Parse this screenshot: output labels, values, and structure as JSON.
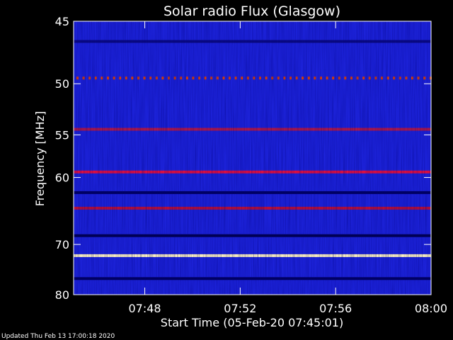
{
  "chart_data": {
    "type": "heatmap",
    "title": "Solar radio Flux (Glasgow)",
    "xlabel": "Start Time (05-Feb-20 07:45:01)",
    "ylabel": "Frequency [MHz]",
    "xlim": [
      "07:45:01",
      "08:00:00"
    ],
    "ylim": [
      45,
      80
    ],
    "x_ticks": [
      "07:48",
      "07:52",
      "07:56",
      "08:00"
    ],
    "y_ticks": [
      45,
      50,
      55,
      60,
      70,
      80
    ],
    "y_scale": "reciprocal",
    "colormap": [
      "#000030",
      "#0000a0",
      "#2020ff",
      "#b01040",
      "#ff2020",
      "#ffa000",
      "#ffffc0"
    ],
    "background_color": "#1c22d8",
    "bands": [
      {
        "freq": 46.5,
        "color": "#0a0a80"
      },
      {
        "freq": 49.5,
        "color": "#e04000",
        "pattern": "dotted"
      },
      {
        "freq": 54.4,
        "color": "#b01848"
      },
      {
        "freq": 59.3,
        "color": "#e01040"
      },
      {
        "freq": 62.0,
        "color": "#000060"
      },
      {
        "freq": 64.2,
        "color": "#b81038"
      },
      {
        "freq": 68.5,
        "color": "#000050"
      },
      {
        "freq": 72.0,
        "color": "#fff4c0"
      },
      {
        "freq": 76.5,
        "color": "#000060"
      }
    ]
  },
  "footer": "Updated Thu Feb 13 17:00:18 2020"
}
